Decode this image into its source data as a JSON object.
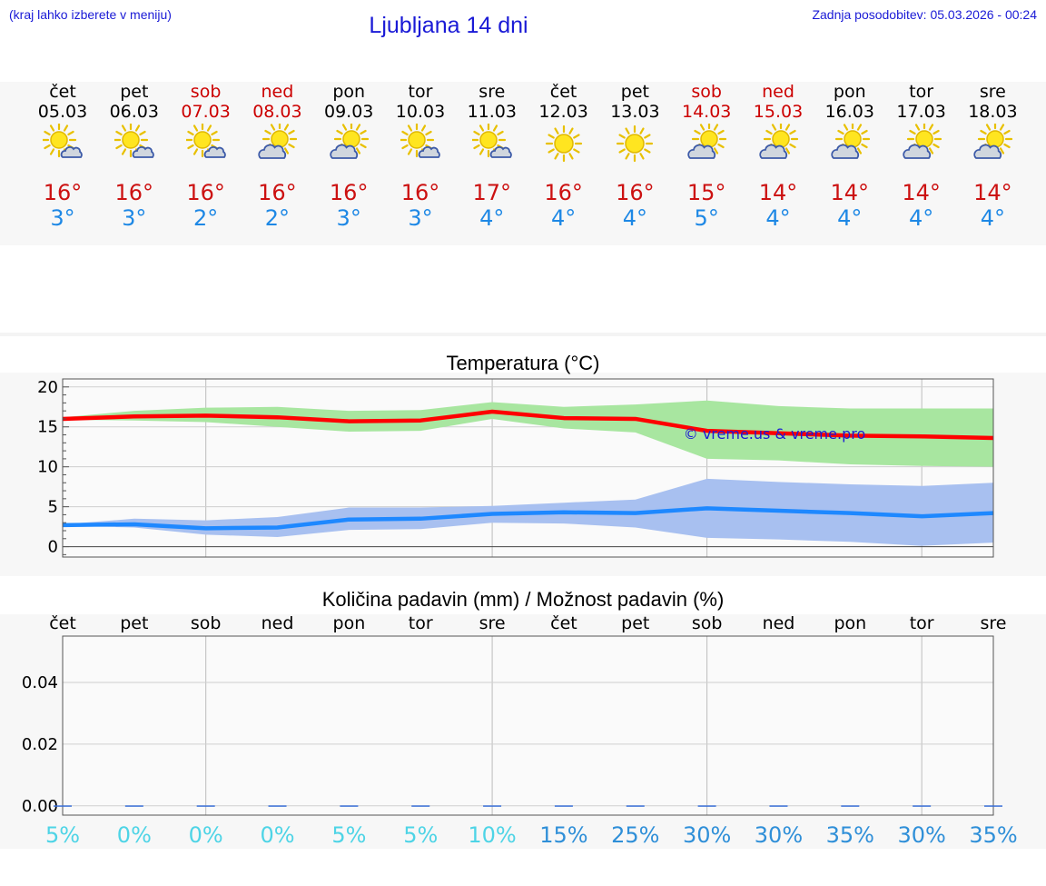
{
  "header": {
    "note": "(kraj lahko izberete v meniju)",
    "title": "Ljubljana 14 dni",
    "updated": "Zadnja posodobitev: 05.03.2026 - 00:24"
  },
  "days": [
    {
      "name": "čet",
      "date": "05.03",
      "weekend": false,
      "icon": "sun-cloud-icon",
      "tmax": "16°",
      "tmin": "3°"
    },
    {
      "name": "pet",
      "date": "06.03",
      "weekend": false,
      "icon": "sun-cloud-icon",
      "tmax": "16°",
      "tmin": "3°"
    },
    {
      "name": "sob",
      "date": "07.03",
      "weekend": true,
      "icon": "sun-cloud-icon",
      "tmax": "16°",
      "tmin": "2°"
    },
    {
      "name": "ned",
      "date": "08.03",
      "weekend": true,
      "icon": "cloud-sun-icon",
      "tmax": "16°",
      "tmin": "2°"
    },
    {
      "name": "pon",
      "date": "09.03",
      "weekend": false,
      "icon": "cloud-sun-icon",
      "tmax": "16°",
      "tmin": "3°"
    },
    {
      "name": "tor",
      "date": "10.03",
      "weekend": false,
      "icon": "sun-cloud-icon",
      "tmax": "16°",
      "tmin": "3°"
    },
    {
      "name": "sre",
      "date": "11.03",
      "weekend": false,
      "icon": "sun-cloud-icon",
      "tmax": "17°",
      "tmin": "4°"
    },
    {
      "name": "čet",
      "date": "12.03",
      "weekend": false,
      "icon": "sun-icon",
      "tmax": "16°",
      "tmin": "4°"
    },
    {
      "name": "pet",
      "date": "13.03",
      "weekend": false,
      "icon": "sun-icon",
      "tmax": "16°",
      "tmin": "4°"
    },
    {
      "name": "sob",
      "date": "14.03",
      "weekend": true,
      "icon": "cloud-sun-icon",
      "tmax": "15°",
      "tmin": "5°"
    },
    {
      "name": "ned",
      "date": "15.03",
      "weekend": true,
      "icon": "cloud-sun-icon",
      "tmax": "14°",
      "tmin": "4°"
    },
    {
      "name": "pon",
      "date": "16.03",
      "weekend": false,
      "icon": "cloud-sun-icon",
      "tmax": "14°",
      "tmin": "4°"
    },
    {
      "name": "tor",
      "date": "17.03",
      "weekend": false,
      "icon": "cloud-sun-icon",
      "tmax": "14°",
      "tmin": "4°"
    },
    {
      "name": "sre",
      "date": "18.03",
      "weekend": false,
      "icon": "cloud-sun-icon",
      "tmax": "14°",
      "tmin": "4°"
    }
  ],
  "chart_data": [
    {
      "type": "line",
      "title": "Temperatura (°C)",
      "watermark": "© vreme.us & vreme.pro",
      "ylim": [
        -1.3,
        21
      ],
      "yticks": [
        0,
        5,
        10,
        15,
        20
      ],
      "grid": true,
      "x_days": [
        1,
        2,
        3,
        4,
        5,
        6,
        7,
        8,
        9,
        10,
        11,
        12,
        13,
        14
      ],
      "series": [
        {
          "values": [
            16.0,
            16.3,
            16.4,
            16.2,
            15.7,
            15.8,
            16.9,
            16.1,
            16.0,
            14.5,
            14.2,
            13.9,
            13.8,
            13.6
          ],
          "color": "#ff0000"
        },
        {
          "values": [
            2.7,
            2.8,
            2.3,
            2.4,
            3.4,
            3.5,
            4.1,
            4.3,
            4.2,
            4.8,
            4.5,
            4.2,
            3.8,
            4.2
          ],
          "color": "#1e88ff"
        }
      ],
      "bands": [
        {
          "low": [
            15.9,
            15.8,
            15.6,
            15.0,
            14.4,
            14.5,
            16.0,
            14.8,
            14.3,
            11.0,
            10.8,
            10.3,
            10.1,
            10.0
          ],
          "high": [
            16.2,
            17.0,
            17.4,
            17.5,
            17.0,
            17.1,
            18.1,
            17.5,
            17.8,
            18.3,
            17.6,
            17.3,
            17.3,
            17.3
          ],
          "color": "#a8e6a0"
        },
        {
          "low": [
            2.6,
            2.4,
            1.5,
            1.2,
            2.1,
            2.2,
            3.0,
            2.9,
            2.4,
            1.1,
            0.9,
            0.6,
            0.1,
            0.5
          ],
          "high": [
            2.8,
            3.5,
            3.3,
            3.7,
            4.9,
            4.9,
            5.1,
            5.5,
            5.9,
            8.5,
            8.1,
            7.8,
            7.6,
            8.0
          ],
          "color": "#a8c0f0"
        }
      ]
    },
    {
      "type": "bar",
      "title": "Količina padavin (mm) / Možnost padavin (%)",
      "categories": [
        "čet",
        "pet",
        "sob",
        "ned",
        "pon",
        "tor",
        "sre",
        "čet",
        "pet",
        "sob",
        "ned",
        "pon",
        "tor",
        "sre"
      ],
      "values": [
        0,
        0,
        0,
        0,
        0,
        0,
        0,
        0,
        0,
        0,
        0,
        0,
        0,
        0
      ],
      "yticks": [
        "0.00",
        "0.02",
        "0.04"
      ],
      "ylim": [
        -0.003,
        0.055
      ],
      "probability": [
        "5%",
        "0%",
        "0%",
        "0%",
        "5%",
        "5%",
        "10%",
        "15%",
        "25%",
        "30%",
        "30%",
        "35%",
        "30%",
        "35%"
      ],
      "probability_values": [
        5,
        0,
        0,
        0,
        5,
        5,
        10,
        15,
        25,
        30,
        30,
        35,
        30,
        35
      ],
      "probability_colors": {
        "low": "#4ed4e6",
        "high": "#2f8fd8"
      }
    }
  ]
}
